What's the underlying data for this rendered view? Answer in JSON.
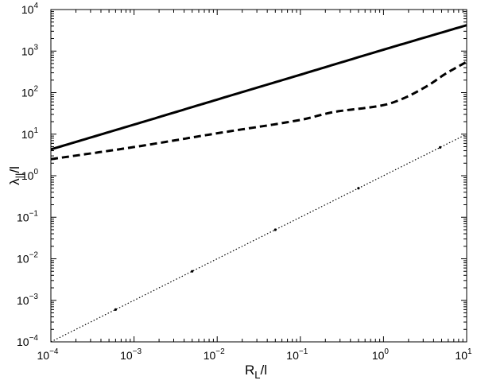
{
  "chart_data": {
    "type": "line",
    "title": "",
    "xlabel": "R_L/l",
    "ylabel": "λ_||/l",
    "xscale": "log",
    "yscale": "log",
    "xlim": [
      0.0001,
      10
    ],
    "ylim": [
      0.0001,
      10000
    ],
    "grid": false,
    "legend": null,
    "x_ticks": [
      "10^-4",
      "10^-3",
      "10^-2",
      "10^-1",
      "10^0",
      "10^1"
    ],
    "y_ticks": [
      "10^-4",
      "10^-3",
      "10^-2",
      "10^-1",
      "10^0",
      "10^1",
      "10^2",
      "10^3",
      "10^4"
    ],
    "series": [
      {
        "name": "solid",
        "style": "solid",
        "x": [
          0.0001,
          0.001,
          0.01,
          0.1,
          1,
          10
        ],
        "values": [
          4.3,
          17,
          68,
          270,
          1080,
          4200
        ]
      },
      {
        "name": "dashed",
        "style": "dashed",
        "x": [
          0.0001,
          0.001,
          0.01,
          0.1,
          0.25,
          1,
          1.8,
          3.5,
          5.5,
          10
        ],
        "values": [
          2.5,
          4.9,
          10.5,
          22,
          34,
          50,
          75,
          152,
          280,
          550
        ]
      },
      {
        "name": "dotted",
        "style": "dotted",
        "x": [
          0.0001,
          0.001,
          0.01,
          0.1,
          1,
          10
        ],
        "values": [
          0.0001,
          0.001,
          0.01,
          0.1,
          1,
          10
        ]
      }
    ]
  },
  "axes": {
    "x_label_main": "R",
    "x_label_sub": "L",
    "x_label_rest": "/l",
    "y_label_main": "λ",
    "y_label_sub": "||",
    "y_label_rest": "/l"
  }
}
